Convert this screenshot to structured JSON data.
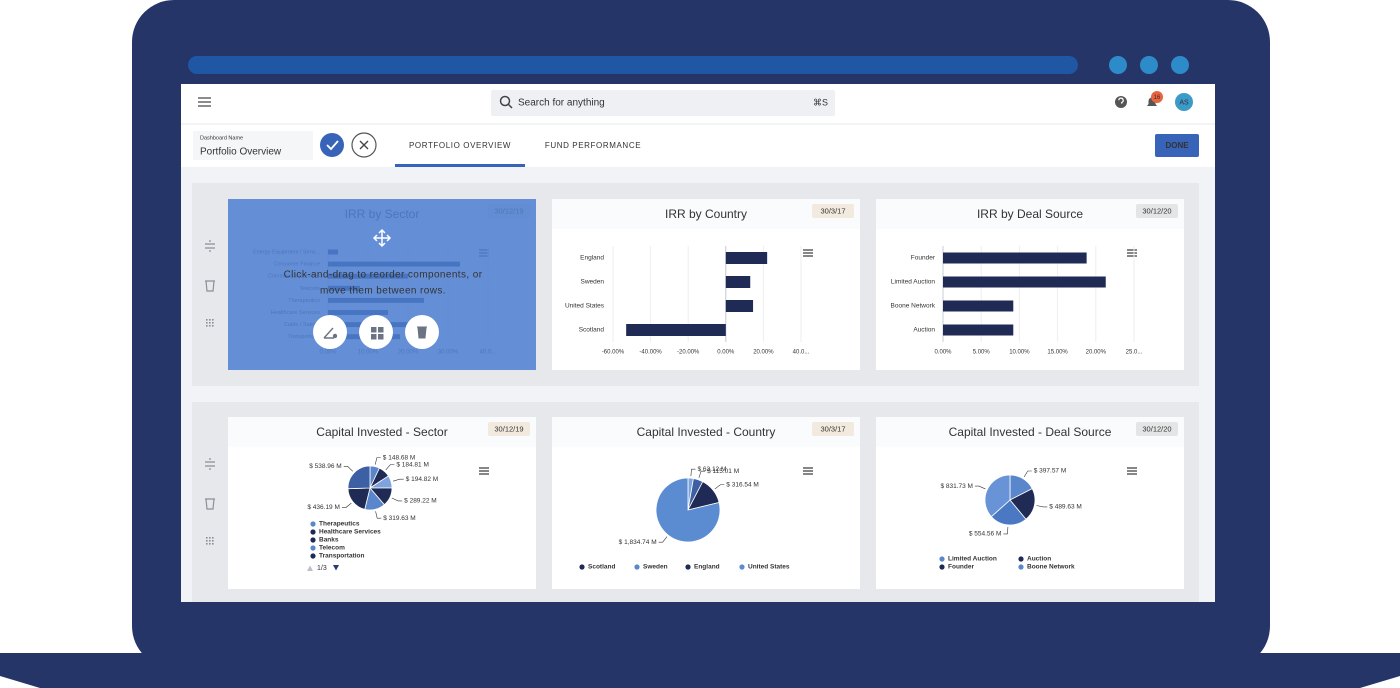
{
  "header": {
    "search_placeholder": "Search for anything",
    "search_shortcut": "⌘S",
    "notification_count": "16",
    "avatar": "AS"
  },
  "toolbar": {
    "dashboard_name_label": "Dashboard Name",
    "dashboard_name": "Portfolio Overview",
    "tabs": [
      "PORTFOLIO OVERVIEW",
      "FUND PERFORMANCE"
    ],
    "done": "DONE"
  },
  "overlay": {
    "message_lines": [
      "Click-and-drag to reorder components, or",
      "move them between rows."
    ]
  },
  "chart_data": [
    {
      "type": "bar",
      "title": "IRR by Sector",
      "date": "30/12/19",
      "badge_color": "#c98a2b",
      "categories": [
        "Energy Equipment / Servi...",
        "Consumer Finance",
        "Commercial Services",
        "Telecom",
        "Therapeutics",
        "Healthcare Services",
        "Cable / Satel...",
        "Transportat..."
      ],
      "values": [
        2.5,
        33,
        20,
        8,
        24,
        15,
        22,
        18
      ],
      "color": "#1f2a55",
      "xlim": [
        0,
        40
      ],
      "xticks": [
        {
          "value": 0,
          "label": "0.00%"
        },
        {
          "value": 10,
          "label": "10.00%"
        },
        {
          "value": 20,
          "label": "20.00%"
        },
        {
          "value": 30,
          "label": "30.00%"
        },
        {
          "value": 40,
          "label": "40.0..."
        }
      ]
    },
    {
      "type": "bar",
      "title": "IRR by Country",
      "date": "30/3/17",
      "badge_color": "#c98a2b",
      "categories": [
        "England",
        "Sweden",
        "United States",
        "Scotland"
      ],
      "values": [
        22,
        13,
        14.5,
        -53
      ],
      "color": "#1f2a55",
      "xlim": [
        -60,
        40
      ],
      "xticks": [
        {
          "value": -60,
          "label": "-60.00%"
        },
        {
          "value": -40,
          "label": "-40.00%"
        },
        {
          "value": -20,
          "label": "-20.00%"
        },
        {
          "value": 0,
          "label": "0.00%"
        },
        {
          "value": 20,
          "label": "20.00%"
        },
        {
          "value": 40,
          "label": "40.0..."
        }
      ]
    },
    {
      "type": "bar",
      "title": "IRR by Deal Source",
      "date": "30/12/20",
      "badge_color": "#666666",
      "categories": [
        "Founder",
        "Limited Auction",
        "Boone Network",
        "Auction"
      ],
      "values": [
        18.8,
        21.3,
        9.2,
        9.2
      ],
      "color": "#1f2a55",
      "xlim": [
        0,
        25
      ],
      "xticks": [
        {
          "value": 0,
          "label": "0.00%"
        },
        {
          "value": 5,
          "label": "5.00%"
        },
        {
          "value": 10,
          "label": "10.00%"
        },
        {
          "value": 15,
          "label": "15.00%"
        },
        {
          "value": 20,
          "label": "20.00%"
        },
        {
          "value": 25,
          "label": "25.0..."
        }
      ]
    },
    {
      "type": "pie",
      "title": "Capital Invested - Sector",
      "date": "30/12/19",
      "badge_color": "#c98a2b",
      "values": [
        148.68,
        184.81,
        194.82,
        289.22,
        319.63,
        436.19,
        538.96
      ],
      "value_labels": [
        "$ 148.68 M",
        "$ 184.81 M",
        "$ 194.82 M",
        "$ 289.22 M",
        "$ 319.63 M",
        "$ 436.19 M",
        "$ 538.96 M"
      ],
      "colors": [
        "#5a87cc",
        "#1f2a55",
        "#7ea3dd",
        "#1f2a55",
        "#5a87cc",
        "#1f2a55",
        "#3d5fa3"
      ],
      "legend": [
        {
          "name": "Therapeutics",
          "color": "#5a87cc"
        },
        {
          "name": "Healthcare Services",
          "color": "#1f2a55"
        },
        {
          "name": "Banks",
          "color": "#1f2a55"
        },
        {
          "name": "Telecom",
          "color": "#5a87cc"
        },
        {
          "name": "Transportation",
          "color": "#1f2a55"
        }
      ],
      "legend_page": "1/3"
    },
    {
      "type": "pie",
      "title": "Capital Invested - Country",
      "date": "30/3/17",
      "badge_color": "#c98a2b",
      "values": [
        63.12,
        115.01,
        316.54,
        1834.74
      ],
      "value_labels": [
        "$ 63.12 M",
        "$ 115.01 M",
        "$ 316.54 M",
        "$ 1,834.74 M"
      ],
      "colors": [
        "#7ea3dd",
        "#3d5fa3",
        "#1f2a55",
        "#5b8bd1"
      ],
      "legend": [
        {
          "name": "Scotland",
          "color": "#1f2a55"
        },
        {
          "name": "Sweden",
          "color": "#5a87cc"
        },
        {
          "name": "England",
          "color": "#1f2a55"
        },
        {
          "name": "United States",
          "color": "#5b8bd1"
        }
      ]
    },
    {
      "type": "pie",
      "title": "Capital Invested - Deal Source",
      "date": "30/12/20",
      "badge_color": "#666666",
      "values": [
        397.57,
        489.63,
        554.56,
        831.73
      ],
      "value_labels": [
        "$ 397.57 M",
        "$ 489.63 M",
        "$ 554.56 M",
        "$ 831.73 M"
      ],
      "colors": [
        "#5a87cc",
        "#1f2a55",
        "#4a78c2",
        "#6893d6"
      ],
      "legend": [
        {
          "name": "Limited Auction",
          "color": "#5a87cc"
        },
        {
          "name": "Auction",
          "color": "#1f2a55"
        },
        {
          "name": "Founder",
          "color": "#1f2a55"
        },
        {
          "name": "Boone Network",
          "color": "#5a87cc"
        }
      ]
    }
  ]
}
